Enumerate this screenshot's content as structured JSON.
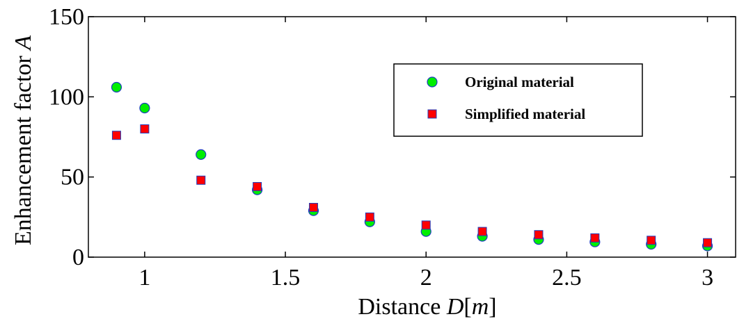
{
  "chart_data": {
    "type": "scatter",
    "xlabel_prefix": "Distance ",
    "xlabel_var": "D",
    "xlabel_unit_open": "[",
    "xlabel_unit": "m",
    "xlabel_unit_close": "]",
    "ylabel_prefix": "Enhancement factor ",
    "ylabel_var": "A",
    "xlim": [
      0.8,
      3.1
    ],
    "ylim": [
      0,
      150
    ],
    "xticks": [
      1,
      1.5,
      2,
      2.5,
      3
    ],
    "xtick_labels": [
      "1",
      "1.5",
      "2",
      "2.5",
      "3"
    ],
    "yticks": [
      0,
      50,
      100,
      150
    ],
    "ytick_labels": [
      "0",
      "50",
      "100",
      "150"
    ],
    "grid": false,
    "legend_position": "top-right",
    "series": [
      {
        "name": "Original material",
        "marker": "circle",
        "color": "#00ee00",
        "edge_color": "#1f3fbf",
        "x": [
          0.9,
          1.0,
          1.2,
          1.4,
          1.6,
          1.8,
          2.0,
          2.2,
          2.4,
          2.6,
          2.8,
          3.0
        ],
        "y": [
          106,
          93,
          64,
          42,
          29,
          22,
          16,
          13,
          11,
          9.5,
          8,
          7
        ]
      },
      {
        "name": "Simplified material",
        "marker": "square",
        "color": "#ff0000",
        "edge_color": "#1f3fbf",
        "x": [
          0.9,
          1.0,
          1.2,
          1.4,
          1.6,
          1.8,
          2.0,
          2.2,
          2.4,
          2.6,
          2.8,
          3.0
        ],
        "y": [
          76,
          80,
          48,
          44,
          31,
          25,
          20,
          16,
          14,
          12,
          10.5,
          9
        ]
      }
    ]
  }
}
